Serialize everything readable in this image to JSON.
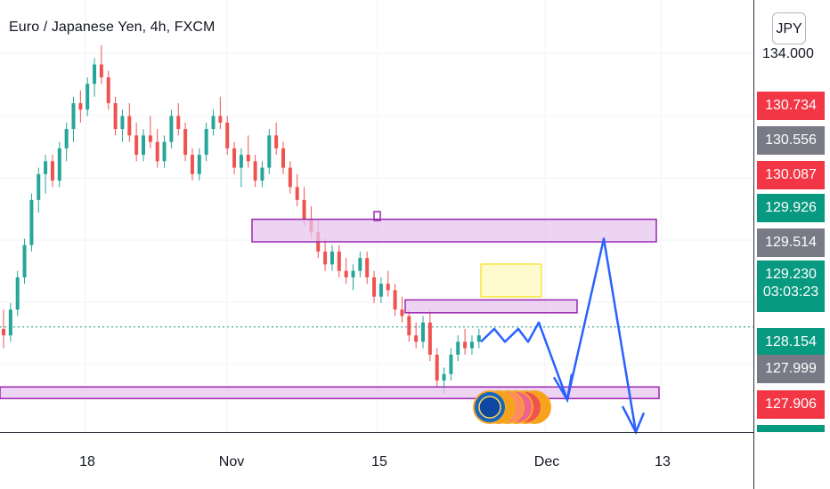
{
  "header": {
    "title": "Euro / Japanese Yen, 4h, FXCM"
  },
  "currency_button": {
    "label": "JPY"
  },
  "price_axis": {
    "top_price": "134.000",
    "labels": [
      {
        "text": "130.734",
        "color": "#f23645"
      },
      {
        "text": "130.556",
        "color": "#787b86"
      },
      {
        "text": "130.087",
        "color": "#f23645"
      },
      {
        "text": "129.926",
        "color": "#089981"
      },
      {
        "text": "129.514",
        "color": "#787b86"
      },
      {
        "text": "129.230",
        "text2": "03:03:23",
        "color": "#089981"
      },
      {
        "text": "128.154",
        "color": "#089981"
      },
      {
        "text": "127.999",
        "color": "#787b86"
      },
      {
        "text": "127.906",
        "color": "#f23645"
      }
    ]
  },
  "time_axis": {
    "ticks": [
      "18",
      "Nov",
      "15",
      "Dec",
      "13"
    ]
  },
  "colors": {
    "up": "#26a69a",
    "down": "#ef5350",
    "zone_fill": "#e7c5ee",
    "zone_border": "#9c27b0",
    "arrow": "#2962ff",
    "target_box": "#fff59d",
    "current_line": "#089981"
  },
  "chart_data": {
    "type": "candlestick",
    "symbol": "Euro / Japanese Yen, 4h, FXCM",
    "currency": "JPY",
    "ylim": [
      127.6,
      134.3
    ],
    "current_price": 129.23,
    "countdown": "03:03:23",
    "x_ticks": [
      "18",
      "Nov",
      "15",
      "Dec",
      "13"
    ],
    "series": [
      {
        "values": [
          [
            129.2,
            129.5,
            128.9,
            129.1
          ],
          [
            129.1,
            129.6,
            129.0,
            129.5
          ],
          [
            129.5,
            130.1,
            129.4,
            130.0
          ],
          [
            130.0,
            130.6,
            129.9,
            130.5
          ],
          [
            130.5,
            131.3,
            130.4,
            131.2
          ],
          [
            131.2,
            131.7,
            131.0,
            131.6
          ],
          [
            131.6,
            131.9,
            131.3,
            131.8
          ],
          [
            131.8,
            131.9,
            131.4,
            131.5
          ],
          [
            131.5,
            132.1,
            131.4,
            132.0
          ],
          [
            132.0,
            132.4,
            131.8,
            132.3
          ],
          [
            132.3,
            132.8,
            132.1,
            132.7
          ],
          [
            132.7,
            132.9,
            132.4,
            132.6
          ],
          [
            132.6,
            133.1,
            132.5,
            133.0
          ],
          [
            133.0,
            133.4,
            132.8,
            133.3
          ],
          [
            133.3,
            133.6,
            133.0,
            133.1
          ],
          [
            133.1,
            133.2,
            132.6,
            132.7
          ],
          [
            132.7,
            132.8,
            132.2,
            132.3
          ],
          [
            132.3,
            132.6,
            132.1,
            132.5
          ],
          [
            132.5,
            132.7,
            132.1,
            132.2
          ],
          [
            132.2,
            132.4,
            131.8,
            131.9
          ],
          [
            131.9,
            132.3,
            131.8,
            132.2
          ],
          [
            132.2,
            132.5,
            132.0,
            132.1
          ],
          [
            132.1,
            132.3,
            131.7,
            131.8
          ],
          [
            131.8,
            132.2,
            131.7,
            132.1
          ],
          [
            132.1,
            132.6,
            132.0,
            132.5
          ],
          [
            132.5,
            132.7,
            132.2,
            132.3
          ],
          [
            132.3,
            132.4,
            131.8,
            131.9
          ],
          [
            131.9,
            132.0,
            131.5,
            131.6
          ],
          [
            131.6,
            132.0,
            131.5,
            131.9
          ],
          [
            131.9,
            132.4,
            131.8,
            132.3
          ],
          [
            132.3,
            132.6,
            132.2,
            132.5
          ],
          [
            132.5,
            132.8,
            132.3,
            132.4
          ],
          [
            132.4,
            132.5,
            131.9,
            132.0
          ],
          [
            132.0,
            132.1,
            131.6,
            131.7
          ],
          [
            131.7,
            132.0,
            131.4,
            131.9
          ],
          [
            131.9,
            132.2,
            131.7,
            131.8
          ],
          [
            131.8,
            131.9,
            131.4,
            131.5
          ],
          [
            131.5,
            131.8,
            131.4,
            131.7
          ],
          [
            131.7,
            132.3,
            131.6,
            132.2
          ],
          [
            132.2,
            132.4,
            131.9,
            132.0
          ],
          [
            132.0,
            132.1,
            131.6,
            131.7
          ],
          [
            131.7,
            131.8,
            131.3,
            131.4
          ],
          [
            131.4,
            131.6,
            131.1,
            131.2
          ],
          [
            131.2,
            131.4,
            130.8,
            130.9
          ],
          [
            130.9,
            131.1,
            130.6,
            130.7
          ],
          [
            130.7,
            130.9,
            130.3,
            130.4
          ],
          [
            130.4,
            130.6,
            130.1,
            130.2
          ],
          [
            130.2,
            130.5,
            130.1,
            130.4
          ],
          [
            130.4,
            130.5,
            130.0,
            130.1
          ],
          [
            130.1,
            130.3,
            129.9,
            130.0
          ],
          [
            130.0,
            130.2,
            129.8,
            130.1
          ],
          [
            130.1,
            130.4,
            130.0,
            130.3
          ],
          [
            130.3,
            130.4,
            129.9,
            130.0
          ],
          [
            130.0,
            130.1,
            129.6,
            129.7
          ],
          [
            129.7,
            130.0,
            129.6,
            129.9
          ],
          [
            129.9,
            130.1,
            129.7,
            129.8
          ],
          [
            129.8,
            129.9,
            129.4,
            129.5
          ],
          [
            129.5,
            129.7,
            129.3,
            129.4
          ],
          [
            129.4,
            129.5,
            129.0,
            129.1
          ],
          [
            129.1,
            129.3,
            128.9,
            129.0
          ],
          [
            129.0,
            129.4,
            128.9,
            129.3
          ],
          [
            129.3,
            129.5,
            128.7,
            128.8
          ],
          [
            128.8,
            128.9,
            128.3,
            128.4
          ],
          [
            128.4,
            128.6,
            128.2,
            128.5
          ],
          [
            128.5,
            128.9,
            128.4,
            128.8
          ],
          [
            128.8,
            129.1,
            128.7,
            129.0
          ],
          [
            129.0,
            129.2,
            128.8,
            128.9
          ],
          [
            128.9,
            129.1,
            128.8,
            129.0
          ],
          [
            129.0,
            129.2,
            128.9,
            129.1
          ]
        ]
      }
    ],
    "zones": [
      {
        "from": 130.9,
        "to": 130.55
      },
      {
        "from": 129.65,
        "to": 129.45
      },
      {
        "from": 128.3,
        "to": 128.12
      }
    ],
    "projection_path": [
      129.0,
      129.2,
      129.0,
      129.2,
      129.0,
      129.3,
      128.1,
      130.6,
      127.6
    ]
  }
}
